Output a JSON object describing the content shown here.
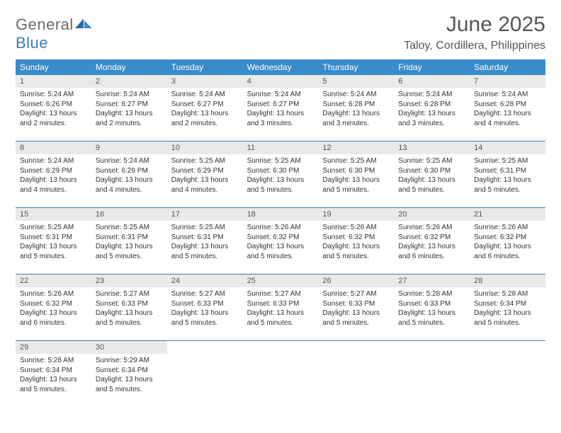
{
  "brand": {
    "word1": "General",
    "word2": "Blue"
  },
  "title": {
    "month": "June 2025",
    "location": "Taloy, Cordillera, Philippines"
  },
  "colors": {
    "header_bg": "#3a8bc9",
    "rule": "#3a7fb8",
    "daynum_bg": "#e9e9e9",
    "text": "#333333"
  },
  "dow": [
    "Sunday",
    "Monday",
    "Tuesday",
    "Wednesday",
    "Thursday",
    "Friday",
    "Saturday"
  ],
  "weeks": [
    [
      {
        "n": "1",
        "sr": "Sunrise: 5:24 AM",
        "ss": "Sunset: 6:26 PM",
        "dl": "Daylight: 13 hours and 2 minutes."
      },
      {
        "n": "2",
        "sr": "Sunrise: 5:24 AM",
        "ss": "Sunset: 6:27 PM",
        "dl": "Daylight: 13 hours and 2 minutes."
      },
      {
        "n": "3",
        "sr": "Sunrise: 5:24 AM",
        "ss": "Sunset: 6:27 PM",
        "dl": "Daylight: 13 hours and 2 minutes."
      },
      {
        "n": "4",
        "sr": "Sunrise: 5:24 AM",
        "ss": "Sunset: 6:27 PM",
        "dl": "Daylight: 13 hours and 3 minutes."
      },
      {
        "n": "5",
        "sr": "Sunrise: 5:24 AM",
        "ss": "Sunset: 6:28 PM",
        "dl": "Daylight: 13 hours and 3 minutes."
      },
      {
        "n": "6",
        "sr": "Sunrise: 5:24 AM",
        "ss": "Sunset: 6:28 PM",
        "dl": "Daylight: 13 hours and 3 minutes."
      },
      {
        "n": "7",
        "sr": "Sunrise: 5:24 AM",
        "ss": "Sunset: 6:28 PM",
        "dl": "Daylight: 13 hours and 4 minutes."
      }
    ],
    [
      {
        "n": "8",
        "sr": "Sunrise: 5:24 AM",
        "ss": "Sunset: 6:29 PM",
        "dl": "Daylight: 13 hours and 4 minutes."
      },
      {
        "n": "9",
        "sr": "Sunrise: 5:24 AM",
        "ss": "Sunset: 6:29 PM",
        "dl": "Daylight: 13 hours and 4 minutes."
      },
      {
        "n": "10",
        "sr": "Sunrise: 5:25 AM",
        "ss": "Sunset: 6:29 PM",
        "dl": "Daylight: 13 hours and 4 minutes."
      },
      {
        "n": "11",
        "sr": "Sunrise: 5:25 AM",
        "ss": "Sunset: 6:30 PM",
        "dl": "Daylight: 13 hours and 5 minutes."
      },
      {
        "n": "12",
        "sr": "Sunrise: 5:25 AM",
        "ss": "Sunset: 6:30 PM",
        "dl": "Daylight: 13 hours and 5 minutes."
      },
      {
        "n": "13",
        "sr": "Sunrise: 5:25 AM",
        "ss": "Sunset: 6:30 PM",
        "dl": "Daylight: 13 hours and 5 minutes."
      },
      {
        "n": "14",
        "sr": "Sunrise: 5:25 AM",
        "ss": "Sunset: 6:31 PM",
        "dl": "Daylight: 13 hours and 5 minutes."
      }
    ],
    [
      {
        "n": "15",
        "sr": "Sunrise: 5:25 AM",
        "ss": "Sunset: 6:31 PM",
        "dl": "Daylight: 13 hours and 5 minutes."
      },
      {
        "n": "16",
        "sr": "Sunrise: 5:25 AM",
        "ss": "Sunset: 6:31 PM",
        "dl": "Daylight: 13 hours and 5 minutes."
      },
      {
        "n": "17",
        "sr": "Sunrise: 5:25 AM",
        "ss": "Sunset: 6:31 PM",
        "dl": "Daylight: 13 hours and 5 minutes."
      },
      {
        "n": "18",
        "sr": "Sunrise: 5:26 AM",
        "ss": "Sunset: 6:32 PM",
        "dl": "Daylight: 13 hours and 5 minutes."
      },
      {
        "n": "19",
        "sr": "Sunrise: 5:26 AM",
        "ss": "Sunset: 6:32 PM",
        "dl": "Daylight: 13 hours and 5 minutes."
      },
      {
        "n": "20",
        "sr": "Sunrise: 5:26 AM",
        "ss": "Sunset: 6:32 PM",
        "dl": "Daylight: 13 hours and 6 minutes."
      },
      {
        "n": "21",
        "sr": "Sunrise: 5:26 AM",
        "ss": "Sunset: 6:32 PM",
        "dl": "Daylight: 13 hours and 6 minutes."
      }
    ],
    [
      {
        "n": "22",
        "sr": "Sunrise: 5:26 AM",
        "ss": "Sunset: 6:32 PM",
        "dl": "Daylight: 13 hours and 6 minutes."
      },
      {
        "n": "23",
        "sr": "Sunrise: 5:27 AM",
        "ss": "Sunset: 6:33 PM",
        "dl": "Daylight: 13 hours and 5 minutes."
      },
      {
        "n": "24",
        "sr": "Sunrise: 5:27 AM",
        "ss": "Sunset: 6:33 PM",
        "dl": "Daylight: 13 hours and 5 minutes."
      },
      {
        "n": "25",
        "sr": "Sunrise: 5:27 AM",
        "ss": "Sunset: 6:33 PM",
        "dl": "Daylight: 13 hours and 5 minutes."
      },
      {
        "n": "26",
        "sr": "Sunrise: 5:27 AM",
        "ss": "Sunset: 6:33 PM",
        "dl": "Daylight: 13 hours and 5 minutes."
      },
      {
        "n": "27",
        "sr": "Sunrise: 5:28 AM",
        "ss": "Sunset: 6:33 PM",
        "dl": "Daylight: 13 hours and 5 minutes."
      },
      {
        "n": "28",
        "sr": "Sunrise: 5:28 AM",
        "ss": "Sunset: 6:34 PM",
        "dl": "Daylight: 13 hours and 5 minutes."
      }
    ],
    [
      {
        "n": "29",
        "sr": "Sunrise: 5:28 AM",
        "ss": "Sunset: 6:34 PM",
        "dl": "Daylight: 13 hours and 5 minutes."
      },
      {
        "n": "30",
        "sr": "Sunrise: 5:29 AM",
        "ss": "Sunset: 6:34 PM",
        "dl": "Daylight: 13 hours and 5 minutes."
      },
      null,
      null,
      null,
      null,
      null
    ]
  ]
}
